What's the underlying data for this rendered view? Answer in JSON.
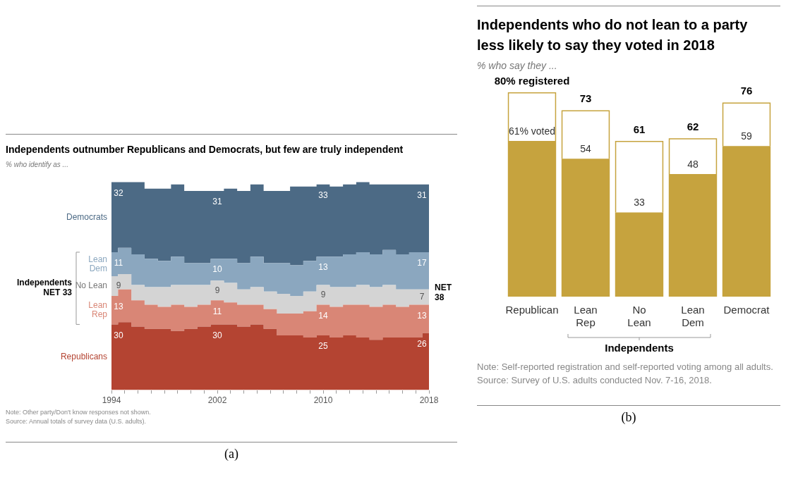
{
  "chart_data": [
    {
      "type": "area",
      "title": "Independents outnumber Republicans and Democrats, but few are truly independent",
      "subtitle": "% who identify as ...",
      "stacked": true,
      "x": [
        1994,
        1995,
        1996,
        1997,
        1998,
        1999,
        2000,
        2001,
        2002,
        2003,
        2004,
        2005,
        2006,
        2007,
        2008,
        2009,
        2010,
        2011,
        2012,
        2013,
        2014,
        2015,
        2016,
        2017,
        2018
      ],
      "xlim": [
        1994,
        2018
      ],
      "xticks": [
        1994,
        {
          "value": 1995,
          "label": null
        },
        {
          "value": 1996,
          "label": null
        },
        {
          "value": 1997,
          "label": null
        },
        {
          "value": 1998,
          "label": null
        },
        {
          "value": 1999,
          "label": null
        },
        {
          "value": 2000,
          "label": null
        },
        {
          "value": 2001,
          "label": null
        },
        2002,
        {
          "value": 2003,
          "label": null
        },
        {
          "value": 2004,
          "label": null
        },
        {
          "value": 2005,
          "label": null
        },
        {
          "value": 2006,
          "label": null
        },
        {
          "value": 2007,
          "label": null
        },
        {
          "value": 2008,
          "label": null
        },
        {
          "value": 2009,
          "label": null
        },
        2010,
        {
          "value": 2011,
          "label": null
        },
        {
          "value": 2012,
          "label": null
        },
        {
          "value": 2013,
          "label": null
        },
        {
          "value": 2014,
          "label": null
        },
        {
          "value": 2015,
          "label": null
        },
        {
          "value": 2016,
          "label": null
        },
        {
          "value": 2017,
          "label": null
        },
        2018
      ],
      "series": [
        {
          "name": "Republicans",
          "color": "#b44432",
          "values": [
            30,
            31,
            29,
            28,
            28,
            27,
            28,
            29,
            30,
            30,
            29,
            30,
            28,
            25,
            25,
            24,
            25,
            24,
            25,
            24,
            23,
            24,
            24,
            24,
            26
          ],
          "value_labels": [
            "30",
            null,
            null,
            null,
            null,
            null,
            null,
            null,
            "30",
            null,
            null,
            null,
            null,
            null,
            null,
            null,
            "25",
            null,
            null,
            null,
            null,
            null,
            null,
            null,
            "26"
          ]
        },
        {
          "name": "Lean Rep",
          "color": "#d98676",
          "values": [
            13,
            15,
            12,
            11,
            10,
            12,
            10,
            10,
            11,
            10,
            10,
            9,
            9,
            10,
            10,
            12,
            14,
            14,
            14,
            15,
            15,
            15,
            14,
            15,
            13
          ],
          "value_labels": [
            "13",
            null,
            null,
            null,
            null,
            null,
            null,
            null,
            "11",
            null,
            null,
            null,
            null,
            null,
            null,
            null,
            "14",
            null,
            null,
            null,
            null,
            null,
            null,
            null,
            "13"
          ]
        },
        {
          "name": "No Lean",
          "color": "#d4d4d4",
          "values": [
            9,
            7,
            7,
            8,
            9,
            9,
            10,
            9,
            9,
            9,
            7,
            8,
            8,
            9,
            8,
            9,
            9,
            9,
            8,
            9,
            9,
            9,
            8,
            7,
            7
          ],
          "value_labels": [
            "9",
            null,
            null,
            null,
            null,
            null,
            null,
            null,
            "9",
            null,
            null,
            null,
            null,
            null,
            null,
            null,
            "9",
            null,
            null,
            null,
            null,
            null,
            null,
            null,
            "7"
          ]
        },
        {
          "name": "Lean Dem",
          "color": "#8ba7bf",
          "values": [
            11,
            12,
            14,
            13,
            12,
            13,
            10,
            10,
            10,
            11,
            12,
            14,
            13,
            14,
            14,
            14,
            13,
            14,
            15,
            15,
            15,
            16,
            16,
            17,
            17
          ],
          "value_labels": [
            "11",
            null,
            null,
            null,
            null,
            null,
            null,
            null,
            "10",
            null,
            null,
            null,
            null,
            null,
            null,
            null,
            "13",
            null,
            null,
            null,
            null,
            null,
            null,
            null,
            "17"
          ]
        },
        {
          "name": "Democrats",
          "color": "#4c6a85",
          "values": [
            32,
            30,
            33,
            32,
            33,
            33,
            33,
            33,
            31,
            32,
            33,
            33,
            33,
            33,
            36,
            34,
            33,
            32,
            32,
            32,
            32,
            30,
            32,
            31,
            31
          ],
          "value_labels": [
            "32",
            null,
            null,
            null,
            null,
            null,
            null,
            null,
            "31",
            null,
            null,
            null,
            null,
            null,
            null,
            null,
            "33",
            null,
            null,
            null,
            null,
            null,
            null,
            null,
            "31"
          ]
        }
      ],
      "annotations": [
        "Independents NET 33",
        "NET 38",
        "Note: Other party/Don't know responses not shown.",
        "Source: Annual totals of survey data (U.S. adults).",
        "(a)"
      ]
    },
    {
      "type": "bar",
      "title": "Independents who do not lean to a party less likely to say they voted in 2018",
      "subtitle": "% who say they ...",
      "categories": [
        "Republican",
        "Lean Rep",
        "No Lean",
        "Lean Dem",
        "Democrat"
      ],
      "series": [
        {
          "color": "#c6a33e",
          "values": [
            61,
            54,
            33,
            48,
            59
          ],
          "value_labels": [
            "61% voted",
            "54",
            "33",
            "48",
            "59"
          ]
        },
        {
          "color": "#ffffff",
          "values": [
            19,
            19,
            28,
            14,
            17
          ]
        }
      ],
      "stacked": true,
      "totals": [
        "80% registered",
        "73",
        "61",
        "62",
        "76"
      ],
      "annotations": [
        "Independents",
        "Note: Self-reported registration and self-reported voting among all adults.",
        "Source: Survey of U.S. adults conducted Nov. 7-16, 2018.",
        "(b)"
      ]
    }
  ]
}
